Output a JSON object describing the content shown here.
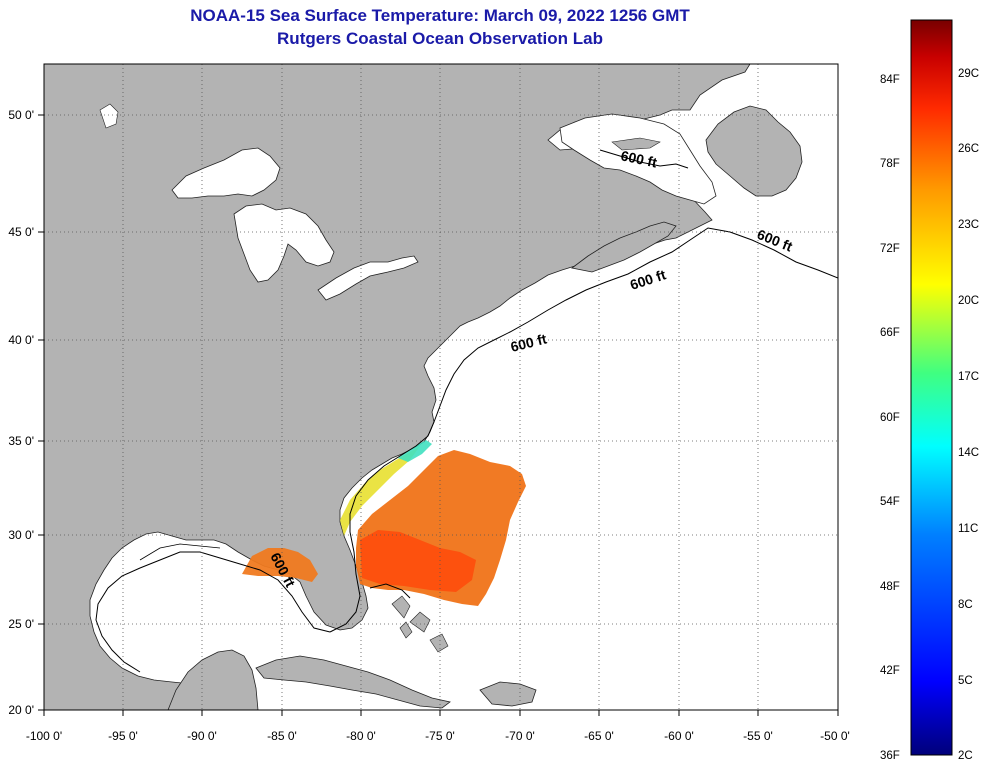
{
  "header": {
    "title": "NOAA-15 Sea Surface Temperature:  March 09, 2022 1256 GMT",
    "subtitle": "Rutgers Coastal Ocean Observation Lab"
  },
  "map": {
    "lon_range": [
      -100,
      -50
    ],
    "lat_range": [
      20,
      52.5
    ],
    "lon_ticks": [
      "-100 0'",
      "-95 0'",
      "-90 0'",
      "-85 0'",
      "-80 0'",
      "-75 0'",
      "-70 0'",
      "-65 0'",
      "-60 0'",
      "-55 0'",
      "-50 0'"
    ],
    "lat_ticks": [
      "50 0'",
      "45 0'",
      "40 0'",
      "35 0'",
      "30 0'",
      "25 0'",
      "20 0'"
    ],
    "land_color": "#b3b3b3",
    "ocean_color": "#ffffff",
    "isobath_labels": [
      "600 ft",
      "600 ft",
      "600 ft",
      "600 ft",
      "600 ft"
    ]
  },
  "colorbar": {
    "range_f": [
      36,
      88
    ],
    "range_c": [
      2,
      31
    ],
    "f_labels": [
      "84F",
      "78F",
      "72F",
      "66F",
      "60F",
      "54F",
      "48F",
      "42F",
      "36F"
    ],
    "c_labels": [
      "29C",
      "26C",
      "23C",
      "20C",
      "17C",
      "14C",
      "11C",
      "8C",
      "5C",
      "2C"
    ],
    "colors": [
      "#00007a",
      "#0000ff",
      "#0080ff",
      "#00ffff",
      "#40ff80",
      "#ffff00",
      "#ff9900",
      "#ff2a00",
      "#c80000",
      "#780000"
    ]
  }
}
